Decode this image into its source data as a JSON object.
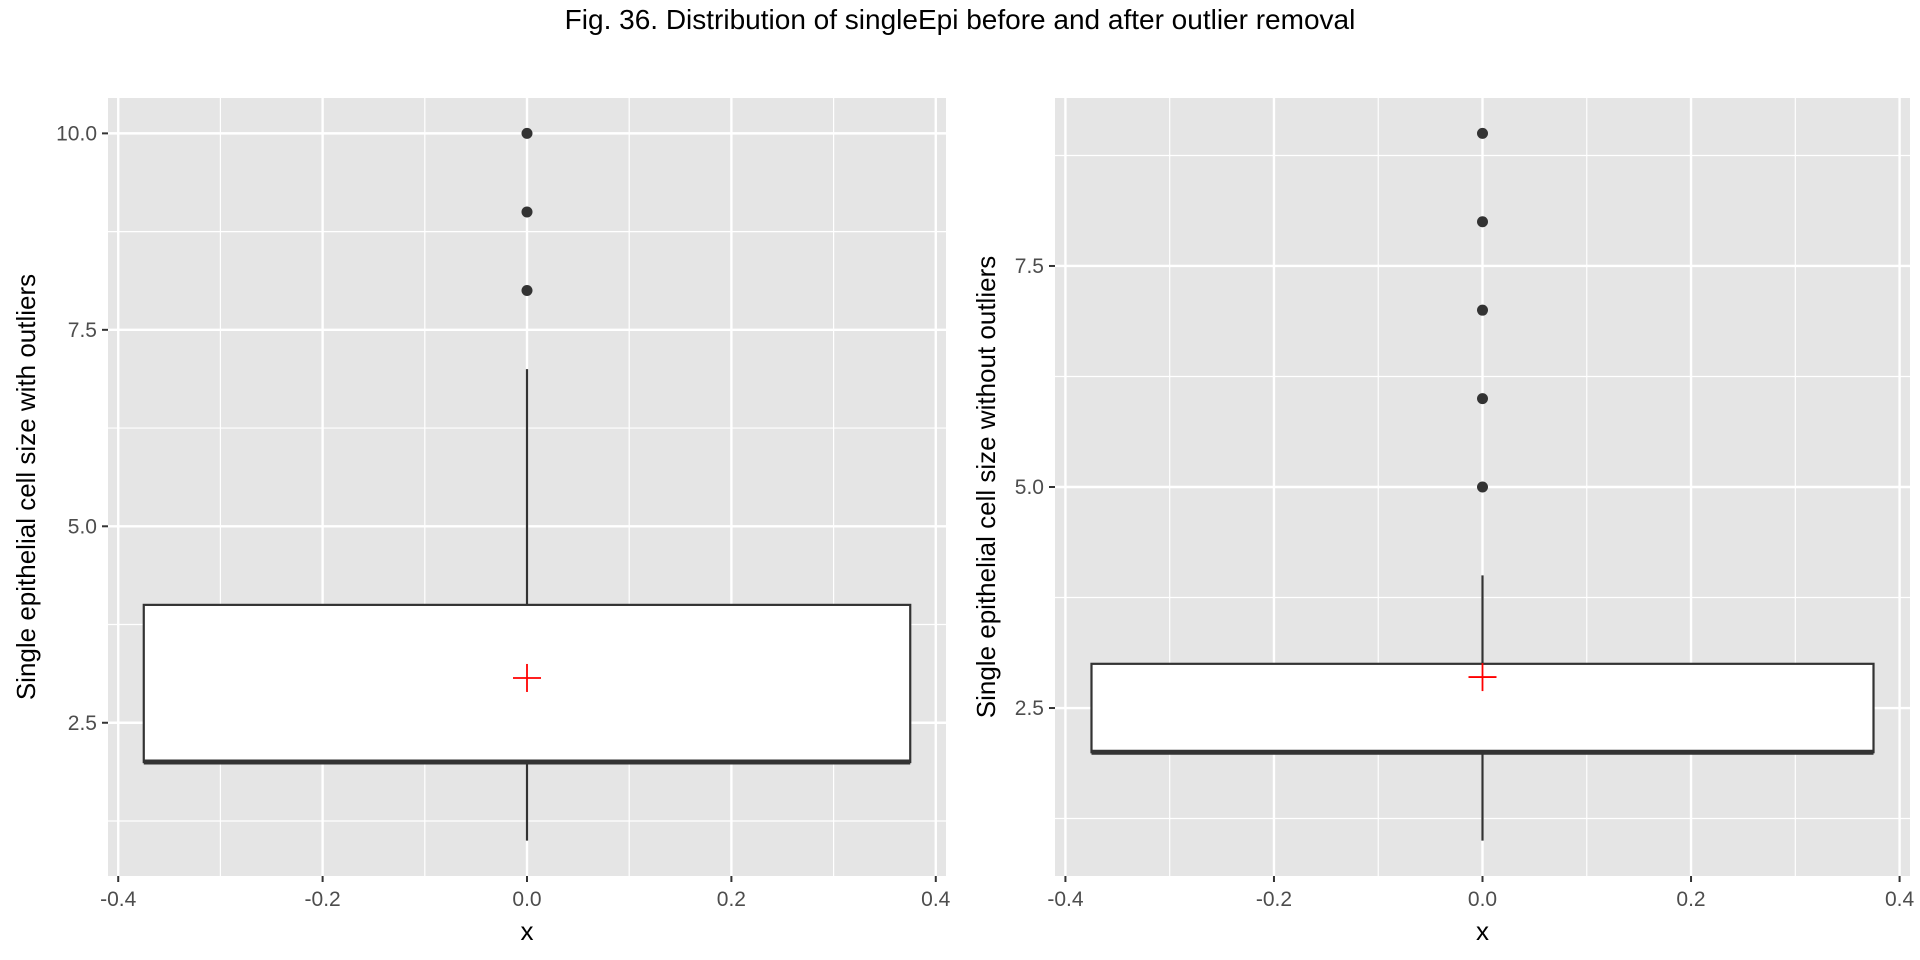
{
  "figure": {
    "title": "Fig. 36. Distribution of singleEpi before and after outlier removal"
  },
  "chart_data": [
    {
      "type": "box",
      "xlabel": "x",
      "ylabel": "Single epithelial cell size with outliers",
      "xlim": [
        -0.41,
        0.41
      ],
      "ylim": [
        0.55,
        10.45
      ],
      "x_ticks": [
        -0.4,
        -0.2,
        0.0,
        0.2,
        0.4
      ],
      "x_tick_labels": [
        "-0.4",
        "-0.2",
        "0.0",
        "0.2",
        "0.4"
      ],
      "y_ticks": [
        2.5,
        5.0,
        7.5,
        10.0
      ],
      "y_tick_labels": [
        "2.5",
        "5.0",
        "7.5",
        "10.0"
      ],
      "grid": true,
      "box": {
        "x": 0.0,
        "width": 0.75,
        "q1": 2,
        "median": 2,
        "q3": 4,
        "whisker_low": 1,
        "whisker_high": 7
      },
      "outliers": [
        8,
        9,
        10
      ],
      "mean": 3.07,
      "colors": {
        "panel_bg": "#e5e5e5",
        "grid": "#ffffff",
        "box_fill": "#ffffff",
        "box_line": "#333333",
        "outlier": "#333333",
        "mean_marker": "#ff0000"
      }
    },
    {
      "type": "box",
      "xlabel": "x",
      "ylabel": "Single epithelial cell size without outliers",
      "xlim": [
        -0.41,
        0.41
      ],
      "ylim": [
        0.6,
        9.4
      ],
      "x_ticks": [
        -0.4,
        -0.2,
        0.0,
        0.2,
        0.4
      ],
      "x_tick_labels": [
        "-0.4",
        "-0.2",
        "0.0",
        "0.2",
        "0.4"
      ],
      "y_ticks": [
        2.5,
        5.0,
        7.5
      ],
      "y_tick_labels": [
        "2.5",
        "5.0",
        "7.5"
      ],
      "grid": true,
      "box": {
        "x": 0.0,
        "width": 0.75,
        "q1": 2,
        "median": 2,
        "q3": 3,
        "whisker_low": 1,
        "whisker_high": 4
      },
      "outliers": [
        5,
        6,
        7,
        8,
        9
      ],
      "mean": 2.85,
      "colors": {
        "panel_bg": "#e5e5e5",
        "grid": "#ffffff",
        "box_fill": "#ffffff",
        "box_line": "#333333",
        "outlier": "#333333",
        "mean_marker": "#ff0000"
      }
    }
  ]
}
